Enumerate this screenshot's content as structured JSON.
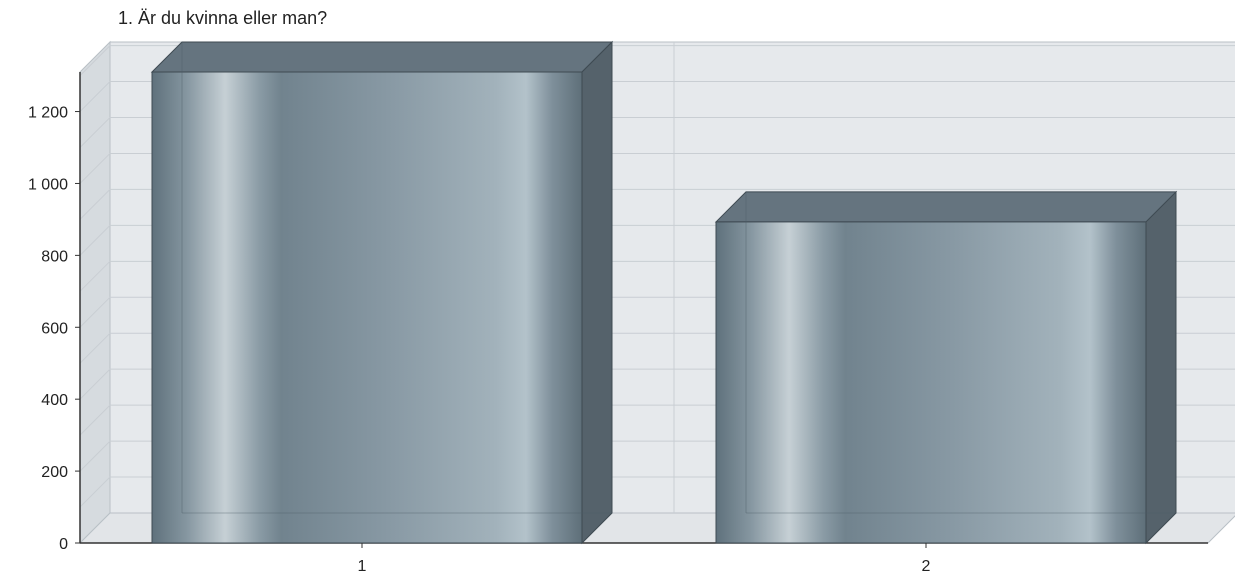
{
  "chart_data": {
    "type": "bar",
    "title": "1. Är du kvinna eller man?",
    "xlabel": "",
    "ylabel": "",
    "categories": [
      "1",
      "2"
    ],
    "values": [
      1312,
      893
    ],
    "ylim": [
      0,
      1310
    ],
    "yticks": [
      {
        "value": 0,
        "label": "0"
      },
      {
        "value": 200,
        "label": "200"
      },
      {
        "value": 400,
        "label": "400"
      },
      {
        "value": 600,
        "label": "600"
      },
      {
        "value": 800,
        "label": "800"
      },
      {
        "value": 1000,
        "label": "1 000"
      },
      {
        "value": 1200,
        "label": "1 200"
      }
    ],
    "grid": true,
    "legend": "none",
    "three_d": true,
    "colors": {
      "bar_front_mid": "#8a9ba6",
      "bar_front_light": "#c4ced4",
      "bar_front_dark": "#5d6f7a",
      "bar_top": "#65747f",
      "bar_side": "#55626b",
      "back_wall": "#e6e9ec",
      "side_wall": "#d6dbdf",
      "floor": "#e2e5e8",
      "gridline": "#c9ced3"
    }
  }
}
